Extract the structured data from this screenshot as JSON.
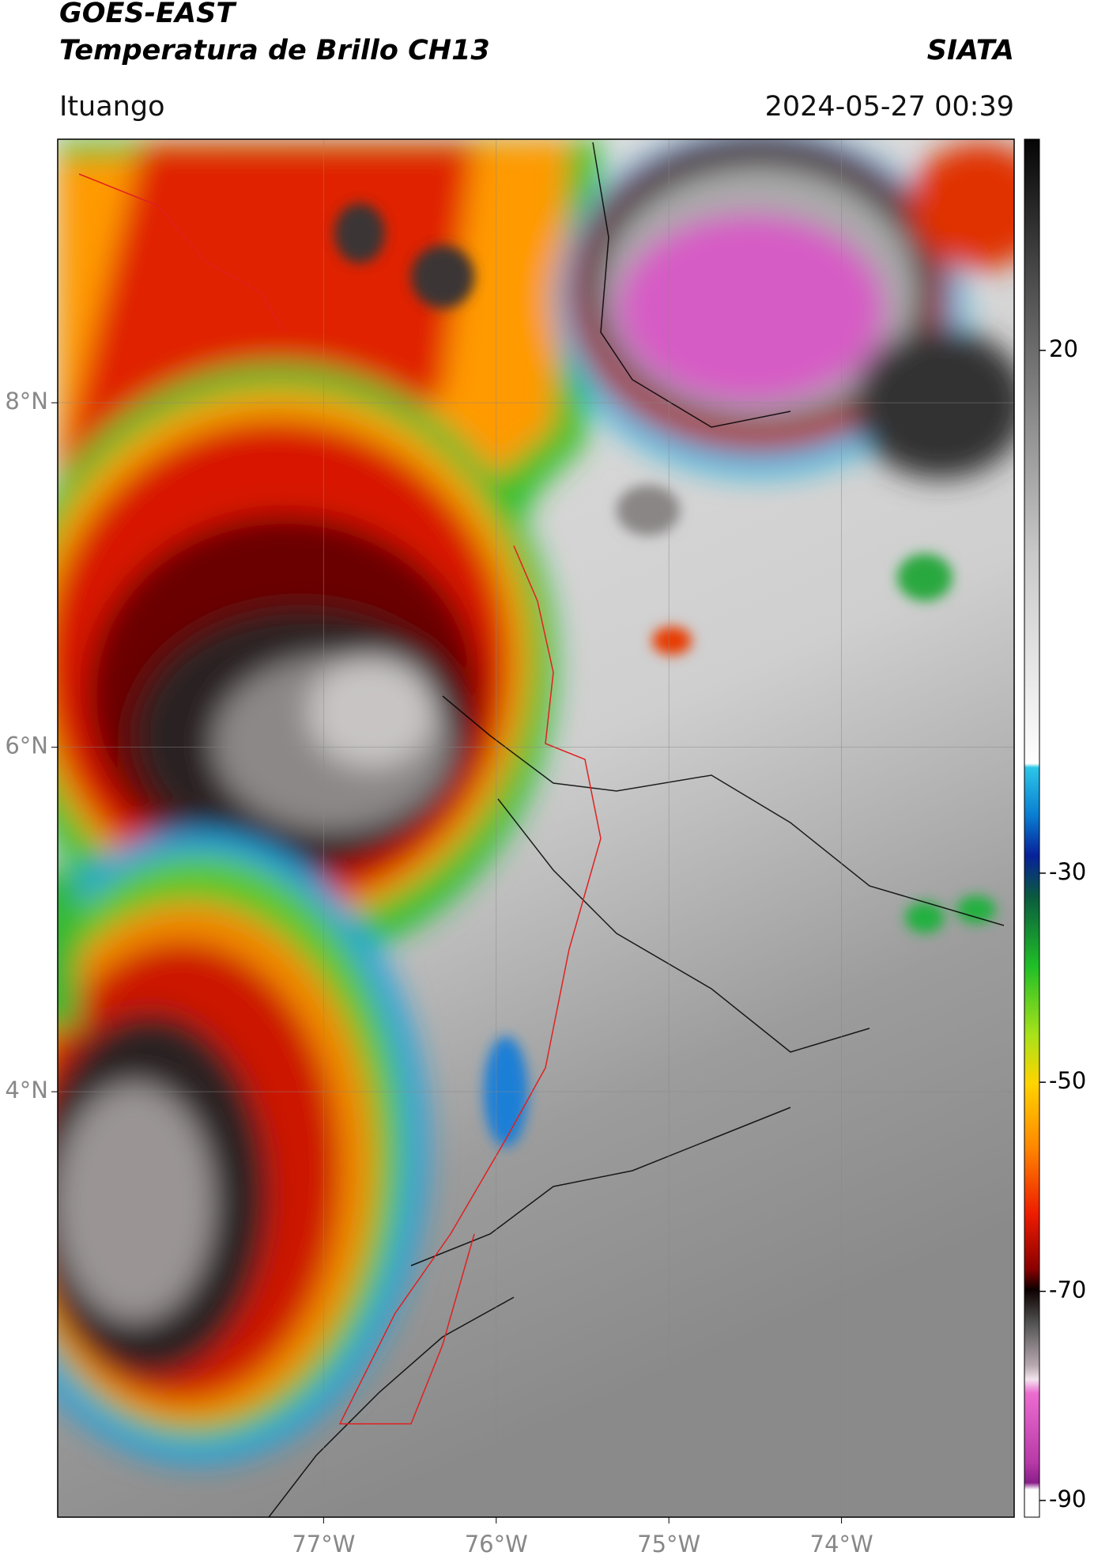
{
  "header": {
    "title": "GOES-EAST",
    "subtitle": "Temperatura de Brillo CH13",
    "agency": "SIATA",
    "location": "Ituango",
    "timestamp": "2024-05-27 00:39"
  },
  "map": {
    "xlim": [
      -78.54,
      -73.0
    ],
    "ylim": [
      1.53,
      9.53
    ],
    "xticks": [
      {
        "value": -77,
        "label": "77°W"
      },
      {
        "value": -76,
        "label": "76°W"
      },
      {
        "value": -75,
        "label": "75°W"
      },
      {
        "value": -74,
        "label": "74°W"
      }
    ],
    "yticks": [
      {
        "value": 8,
        "label": "8°N"
      },
      {
        "value": 6,
        "label": "6°N"
      },
      {
        "value": 4,
        "label": "4°N"
      }
    ],
    "grid": true
  },
  "colorbar": {
    "lim": [
      -91.6,
      40.2
    ],
    "ticks": [
      20,
      -30,
      -50,
      -70,
      -90
    ]
  }
}
